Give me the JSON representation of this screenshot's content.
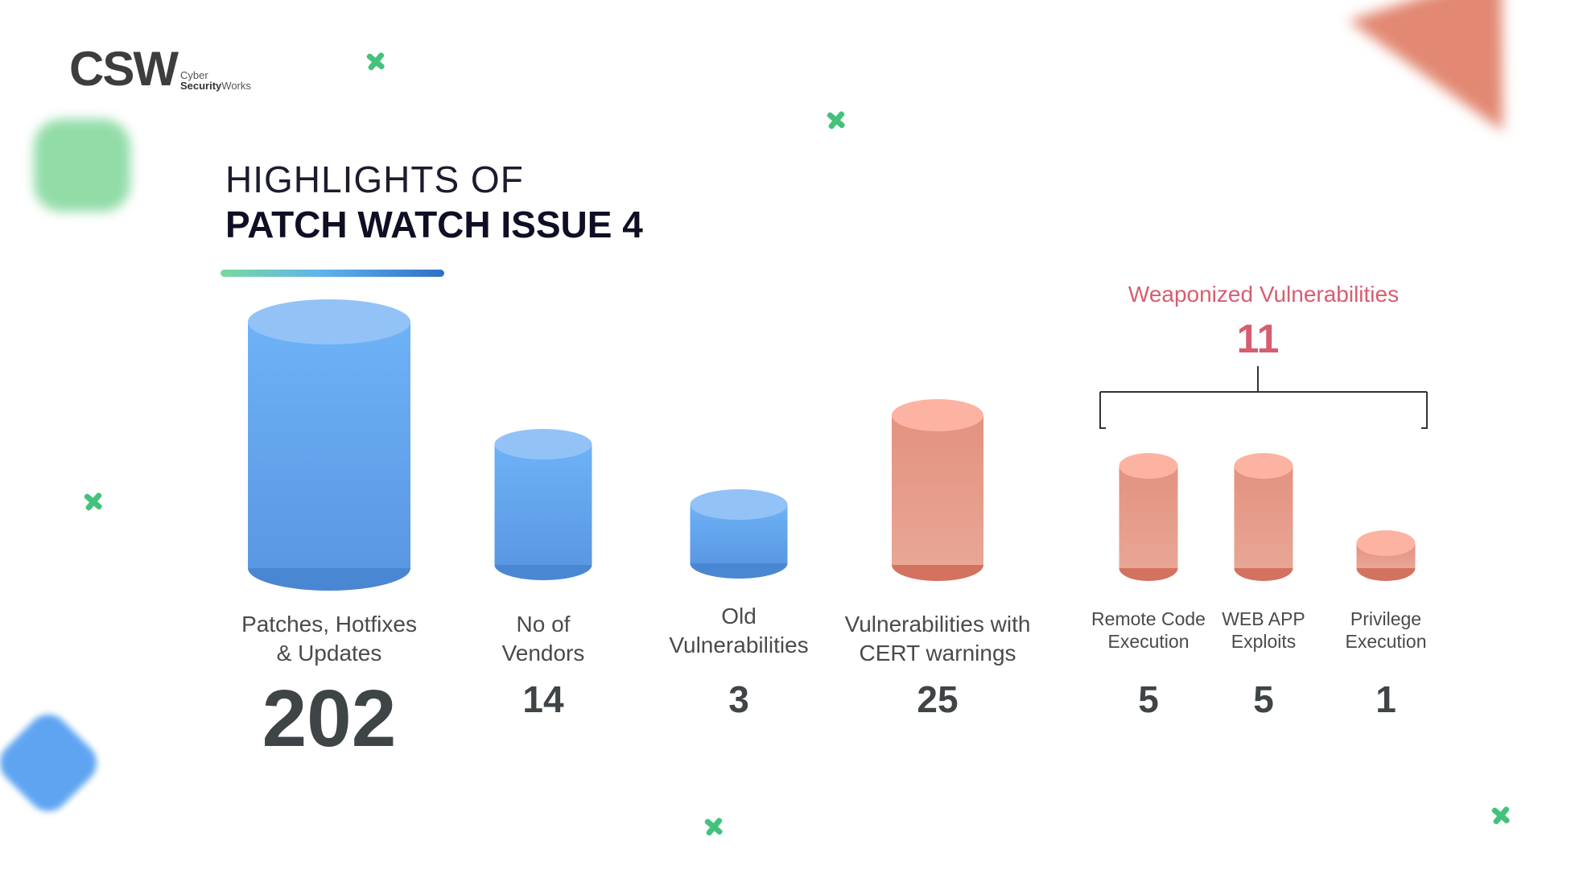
{
  "logo": {
    "mark": "CSW",
    "sub_line1": "Cyber",
    "sub_line2_strong": "Security",
    "sub_line2_rest": "Works"
  },
  "title": {
    "line1": "HIGHLIGHTS OF",
    "line2": "PATCH WATCH ISSUE 4"
  },
  "weaponized": {
    "title": "Weaponized Vulnerabilities",
    "value": "11"
  },
  "colors": {
    "blue_top": "#93c2f7",
    "blue_body": "#6aaef5",
    "blue_bottom": "#4a87d2",
    "salmon_top": "#fdb3a1",
    "salmon_body": "#e79b89",
    "salmon_bottom": "#d3725f",
    "accent_pink": "#d75d70"
  },
  "chart_data": {
    "type": "bar",
    "title": "",
    "categories": [
      "Patches, Hotfixes & Updates",
      "No of Vendors",
      "Old Vulnerabilities",
      "Vulnerabilities with CERT warnings",
      "Remote Code Execution",
      "WEB APP Exploits",
      "Privilege Execution"
    ],
    "category_lines": [
      [
        "Patches, Hotfixes",
        "& Updates"
      ],
      [
        "No of",
        "Vendors"
      ],
      [
        "Old",
        "Vulnerabilities"
      ],
      [
        "Vulnerabilities with",
        "CERT warnings"
      ],
      [
        "Remote Code",
        "Execution"
      ],
      [
        "WEB APP",
        "Exploits"
      ],
      [
        "Privilege",
        "Execution"
      ]
    ],
    "values": [
      202,
      14,
      3,
      25,
      5,
      5,
      1
    ],
    "value_labels": [
      "202",
      "14",
      "3",
      "25",
      "5",
      "5",
      "1"
    ],
    "bar_colors": [
      "blue",
      "blue",
      "blue",
      "salmon",
      "salmon",
      "salmon",
      "salmon"
    ],
    "group": {
      "label": "Weaponized Vulnerabilities",
      "total": 11,
      "members": [
        "Remote Code Execution",
        "WEB APP Exploits",
        "Privilege Execution"
      ]
    },
    "xlabel": "",
    "ylabel": "",
    "grid": false
  }
}
